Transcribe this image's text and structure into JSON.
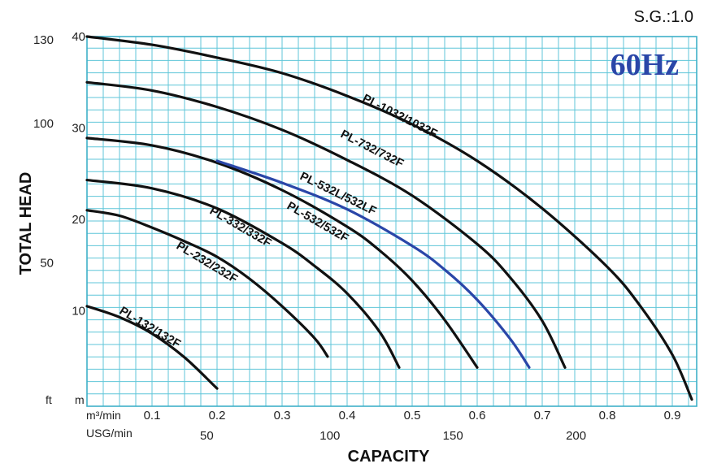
{
  "chart_data": {
    "type": "line",
    "specific_gravity_label": "S.G.:1.0",
    "frequency_label": "60Hz",
    "xlabel": "CAPACITY",
    "ylabel": "TOTAL HEAD",
    "x_unit_primary": "m³/min",
    "x_unit_secondary": "USG/min",
    "y_unit_primary": "m",
    "y_unit_secondary": "ft",
    "x_ticks_m3min": [
      "0.1",
      "0.2",
      "0.3",
      "0.4",
      "0.5",
      "0.6",
      "0.7",
      "0.8",
      "0.9"
    ],
    "x_ticks_usgmin": [
      "50",
      "100",
      "150",
      "200"
    ],
    "y_ticks_m": [
      "10",
      "20",
      "30",
      "40"
    ],
    "y_ticks_ft": [
      "50",
      "100",
      "130"
    ],
    "xlim_m3min": [
      0,
      0.94
    ],
    "ylim_m": [
      0,
      40
    ],
    "grid": true,
    "accent_color": "#2a46a8",
    "curve_color": "#111111",
    "grid_color": "#5fc6d8",
    "series": [
      {
        "name": "PL-132/132F",
        "color": "#111111",
        "x": [
          0,
          0.05,
          0.1,
          0.15,
          0.2
        ],
        "y": [
          10.5,
          9.3,
          7.5,
          4.9,
          1.5
        ]
      },
      {
        "name": "PL-232/232F",
        "color": "#111111",
        "x": [
          0,
          0.05,
          0.1,
          0.15,
          0.2,
          0.25,
          0.3,
          0.35,
          0.37
        ],
        "y": [
          21,
          20.4,
          19.1,
          17.6,
          15.9,
          13.5,
          10.5,
          7.0,
          5.0
        ]
      },
      {
        "name": "PL-332/332F",
        "color": "#111111",
        "x": [
          0,
          0.1,
          0.2,
          0.3,
          0.35,
          0.4,
          0.45,
          0.48
        ],
        "y": [
          24.3,
          23.4,
          21.2,
          17.4,
          14.9,
          11.9,
          7.7,
          3.8
        ]
      },
      {
        "name": "PL-532/532F",
        "color": "#111111",
        "x": [
          0,
          0.1,
          0.2,
          0.3,
          0.4,
          0.45,
          0.5,
          0.55,
          0.6
        ],
        "y": [
          28.9,
          28.1,
          26.2,
          23.2,
          19.2,
          16.6,
          13.3,
          9.0,
          3.8
        ]
      },
      {
        "name": "PL-532L/532LF",
        "color": "#2a46a8",
        "x": [
          0.2,
          0.3,
          0.4,
          0.5,
          0.55,
          0.6,
          0.65,
          0.68
        ],
        "y": [
          26.4,
          24.0,
          21.1,
          17.1,
          14.5,
          11.2,
          7.0,
          3.8
        ]
      },
      {
        "name": "PL-732/732F",
        "color": "#111111",
        "x": [
          0,
          0.1,
          0.2,
          0.3,
          0.4,
          0.5,
          0.6,
          0.65,
          0.7,
          0.735
        ],
        "y": [
          35.0,
          34.1,
          32.3,
          29.8,
          26.5,
          22.6,
          17.3,
          13.7,
          8.9,
          3.8
        ]
      },
      {
        "name": "PL-1032/1032F",
        "color": "#111111",
        "x": [
          0,
          0.1,
          0.2,
          0.3,
          0.4,
          0.5,
          0.6,
          0.7,
          0.8,
          0.85,
          0.9,
          0.93
        ],
        "y": [
          40.0,
          39.1,
          37.7,
          36.0,
          33.5,
          30.4,
          26.4,
          21.2,
          14.8,
          10.6,
          5.2,
          0.3
        ]
      }
    ]
  }
}
